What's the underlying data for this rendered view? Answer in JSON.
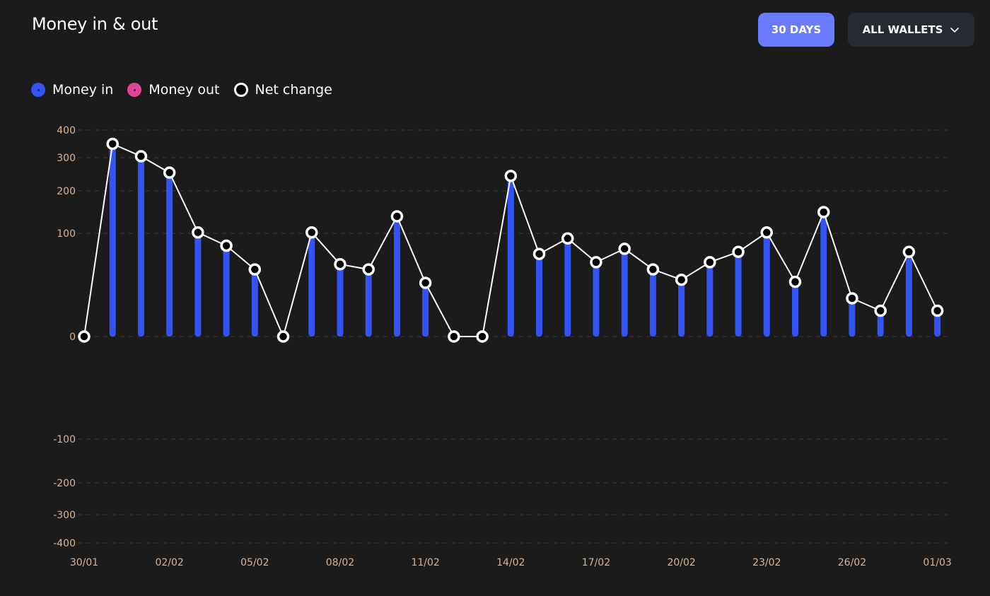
{
  "header": {
    "title": "Money in & out",
    "period_button": "30 DAYS",
    "wallet_select": "ALL WALLETS"
  },
  "legend": [
    {
      "label": "Money in",
      "color": "#3354f2"
    },
    {
      "label": "Money out",
      "color": "#e0459a"
    },
    {
      "label": "Net change",
      "color": "#ffffff"
    }
  ],
  "chart_data": {
    "type": "bar",
    "y_ticks": [
      400,
      300,
      200,
      100,
      0,
      -100,
      -200,
      -300,
      -400
    ],
    "y_tick_labels": [
      "400",
      "300",
      "200",
      "100",
      "0",
      "-100",
      "-200",
      "-300",
      "-400"
    ],
    "x_tick_labels": [
      {
        "index": 0,
        "label": "30/01"
      },
      {
        "index": 3,
        "label": "02/02"
      },
      {
        "index": 6,
        "label": "05/02"
      },
      {
        "index": 9,
        "label": "08/02"
      },
      {
        "index": 12,
        "label": "11/02"
      },
      {
        "index": 15,
        "label": "14/02"
      },
      {
        "index": 18,
        "label": "17/02"
      },
      {
        "index": 21,
        "label": "20/02"
      },
      {
        "index": 24,
        "label": "23/02"
      },
      {
        "index": 27,
        "label": "26/02"
      },
      {
        "index": 30,
        "label": "01/03"
      }
    ],
    "categories": [
      "30/01",
      "31/01",
      "01/02",
      "02/02",
      "03/02",
      "04/02",
      "05/02",
      "06/02",
      "07/02",
      "08/02",
      "09/02",
      "10/02",
      "11/02",
      "12/02",
      "13/02",
      "14/02",
      "15/02",
      "16/02",
      "17/02",
      "18/02",
      "19/02",
      "20/02",
      "21/02",
      "22/02",
      "23/02",
      "24/02",
      "25/02",
      "26/02",
      "27/02",
      "28/02",
      "01/03"
    ],
    "series": [
      {
        "name": "Money in",
        "type": "bar",
        "color": "#3354f2",
        "values": [
          0,
          350,
          305,
          255,
          102,
          88,
          65,
          0,
          102,
          70,
          65,
          140,
          52,
          0,
          0,
          245,
          80,
          95,
          72,
          85,
          65,
          55,
          72,
          82,
          102,
          53,
          150,
          37,
          25,
          82,
          25
        ]
      },
      {
        "name": "Money out",
        "type": "bar",
        "color": "#e0459a",
        "values": [
          0,
          0,
          0,
          0,
          0,
          0,
          0,
          0,
          0,
          0,
          0,
          0,
          0,
          0,
          0,
          0,
          0,
          0,
          0,
          0,
          0,
          0,
          0,
          0,
          0,
          0,
          0,
          0,
          0,
          0,
          0
        ]
      },
      {
        "name": "Net change",
        "type": "line",
        "color": "#ffffff",
        "values": [
          0,
          350,
          305,
          255,
          102,
          88,
          65,
          0,
          102,
          70,
          65,
          140,
          52,
          0,
          0,
          245,
          80,
          95,
          72,
          85,
          65,
          55,
          72,
          82,
          102,
          53,
          150,
          37,
          25,
          82,
          25
        ]
      }
    ],
    "ylim": [
      -400,
      400
    ],
    "grid": true
  }
}
